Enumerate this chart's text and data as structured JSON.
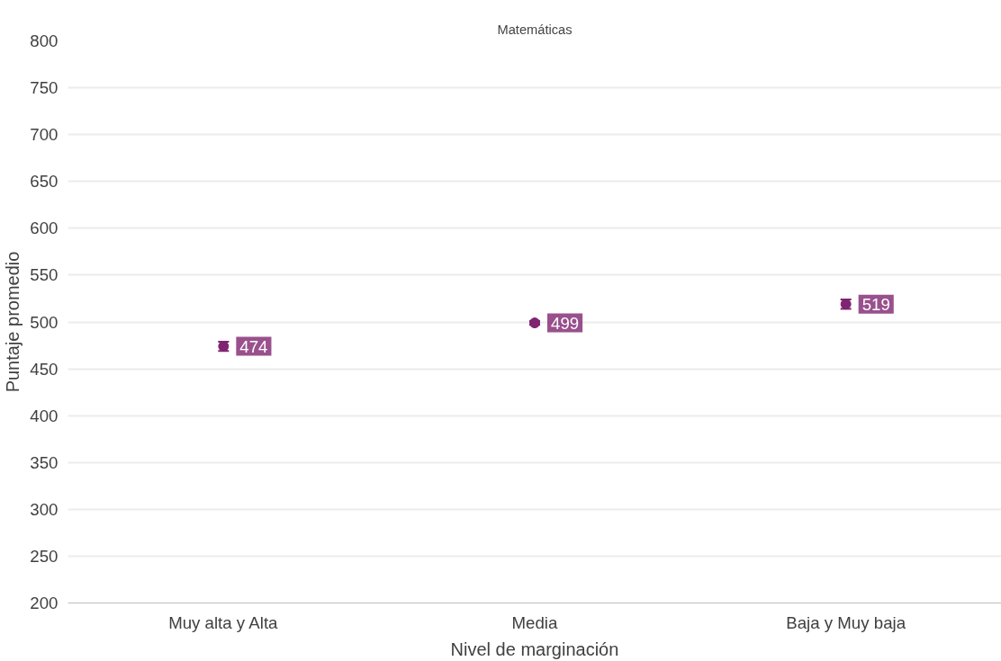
{
  "chart_data": {
    "type": "scatter",
    "title": "Matemáticas",
    "xlabel": "Nivel de marginación",
    "ylabel": "Puntaje promedio",
    "categories": [
      "Muy alta y Alta",
      "Media",
      "Baja y Muy baja"
    ],
    "series": [
      {
        "color": "#7f2470",
        "values": [
          474,
          499,
          519
        ],
        "errors": [
          5,
          2,
          5
        ]
      }
    ],
    "ylim": [
      200,
      800
    ],
    "yticks": [
      200,
      250,
      300,
      350,
      400,
      450,
      500,
      550,
      600,
      650,
      700,
      750,
      800
    ],
    "grid": "y",
    "marker": "circle",
    "data_labels": true
  }
}
